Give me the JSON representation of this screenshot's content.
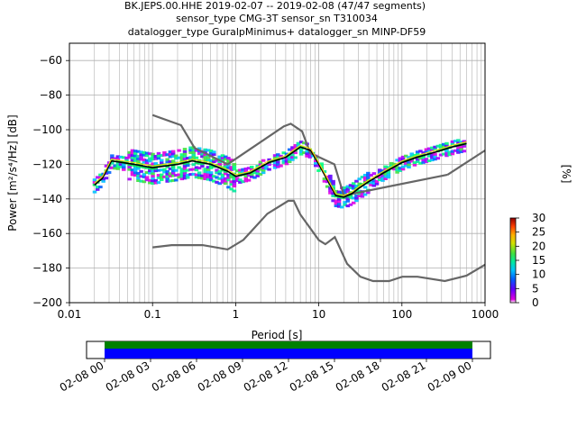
{
  "title_lines": [
    "BK.JEPS.00.HHE   2019-02-07 -- 2019-02-08  (47/47 segments)",
    "sensor_type CMG-3T sensor_sn T310034",
    "datalogger_type GuralpMinimus+ datalogger_sn MINP-DF59"
  ],
  "colorbar": {
    "label": "[%]",
    "ticks": [
      "0",
      "5",
      "10",
      "15",
      "20",
      "25",
      "30"
    ],
    "range": [
      0,
      30
    ]
  },
  "timeline": {
    "ticks": [
      "02-08 00",
      "02-08 03",
      "02-08 06",
      "02-08 09",
      "02-08 12",
      "02-08 15",
      "02-08 18",
      "02-08 21",
      "02-09 00"
    ],
    "colors": {
      "upper": "#008000",
      "lower": "#0000ff"
    }
  },
  "chart_data": {
    "type": "line",
    "title": "BK.JEPS.00.HHE   2019-02-07 -- 2019-02-08  (47/47 segments)",
    "xlabel": "Period [s]",
    "ylabel": "Power [m²/s⁴/Hz] [dB]",
    "xscale": "log",
    "xlim": [
      0.01,
      1000
    ],
    "ylim": [
      -200,
      -50
    ],
    "xticks": [
      {
        "v": 0.01,
        "label": "0.01"
      },
      {
        "v": 0.1,
        "label": "0.1"
      },
      {
        "v": 1,
        "label": "1"
      },
      {
        "v": 10,
        "label": "10"
      },
      {
        "v": 100,
        "label": "100"
      },
      {
        "v": 1000,
        "label": "1000"
      }
    ],
    "yticks": [
      -60,
      -80,
      -100,
      -120,
      -140,
      -160,
      -180,
      -200
    ],
    "grid": true,
    "series": [
      {
        "role": "high-noise-model",
        "color": "#666666",
        "x": [
          0.1,
          0.22,
          0.32,
          0.8,
          3.8,
          4.6,
          6.3,
          7.9,
          15.4,
          20,
          354.8
        ],
        "y": [
          -91.5,
          -97.4,
          -110.5,
          -120,
          -98,
          -96.5,
          -101,
          -113.5,
          -120,
          -138,
          -126
        ]
      },
      {
        "role": "high-noise-model-tail",
        "color": "#666666",
        "x": [
          354.8,
          1000
        ],
        "y": [
          -126,
          -112
        ]
      },
      {
        "role": "low-noise-model",
        "color": "#666666",
        "x": [
          0.1,
          0.17,
          0.4,
          0.8,
          1.24,
          2.4,
          4.3,
          5,
          6,
          10,
          12,
          15.6,
          21.9,
          31.6,
          45,
          70,
          101,
          154,
          328,
          600,
          1000
        ],
        "y": [
          -168,
          -166.7,
          -166.7,
          -169.2,
          -163.7,
          -148.6,
          -141.1,
          -141.1,
          -149,
          -163.8,
          -166.2,
          -162.1,
          -177.5,
          -185,
          -187.5,
          -187.5,
          -185,
          -185,
          -187.5,
          -184.4,
          -178
        ]
      },
      {
        "role": "mode",
        "color": "#000000",
        "x": [
          0.02,
          0.025,
          0.032,
          0.06,
          0.1,
          0.2,
          0.3,
          0.5,
          0.8,
          1,
          1.5,
          2.5,
          4,
          6,
          8,
          10,
          13,
          16,
          20,
          25,
          30,
          40,
          60,
          100,
          150,
          250,
          400,
          600
        ],
        "y": [
          -132,
          -128,
          -118,
          -120,
          -122,
          -120,
          -118,
          -120,
          -124,
          -127,
          -125,
          -119,
          -116,
          -110,
          -112,
          -120,
          -130,
          -138,
          -139,
          -137,
          -134,
          -130,
          -125,
          -119,
          -116,
          -113,
          -110,
          -108
        ]
      },
      {
        "role": "mean",
        "color": "#ffd700",
        "x": [
          0.02,
          0.025,
          0.032,
          0.06,
          0.1,
          0.2,
          0.3,
          0.5,
          0.8,
          1,
          1.5,
          2.5,
          4,
          6,
          8,
          10,
          13,
          16,
          20,
          25,
          30,
          40,
          60,
          100,
          150,
          250,
          400,
          600
        ],
        "y": [
          -131,
          -127,
          -117,
          -119,
          -121,
          -119,
          -117,
          -119,
          -123,
          -126,
          -124,
          -118,
          -115,
          -109,
          -111,
          -119,
          -129,
          -137,
          -138,
          -136,
          -133,
          -129,
          -124,
          -118,
          -115,
          -112,
          -109,
          -107
        ]
      }
    ]
  }
}
